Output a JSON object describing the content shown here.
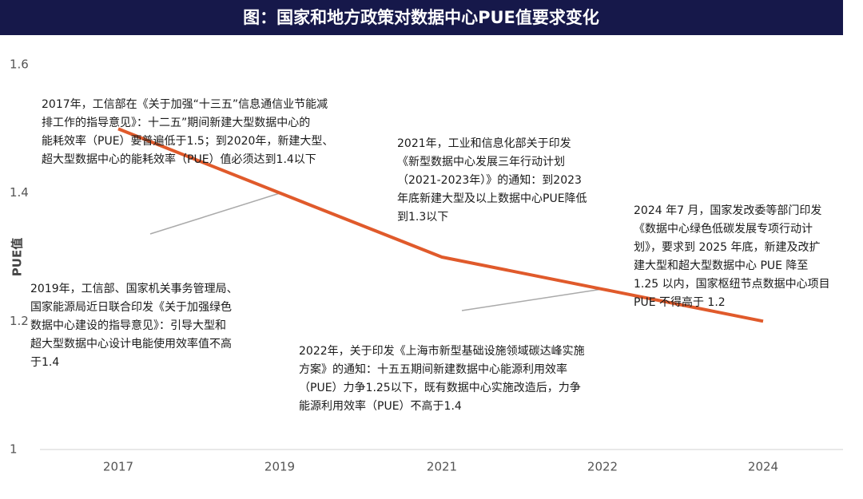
{
  "chart_data": {
    "type": "line",
    "title": "图：国家和地方政策对数据中心PUE值要求变化",
    "y_label": "PUE值",
    "categories": [
      "2017",
      "2019",
      "2021",
      "2022",
      "2024"
    ],
    "series": [
      {
        "name": "PUE",
        "color": "#e05a2b",
        "values": [
          1.5,
          1.4,
          1.3,
          1.25,
          1.2
        ]
      }
    ],
    "ylim": [
      1,
      1.6
    ],
    "yticks": [
      1,
      1.2,
      1.4,
      1.6
    ],
    "annotations": [
      [
        "2017年，工信部在《关于加强“十三五”信息通信业节能减",
        "排工作的指导意见》：十二五”期间新建大型数据中心的",
        "能耗效率（PUE）要普遍低于1.5；到2020年，新建大型、",
        "超大型数据中心的能耗效率（PUE）值必须达到1.4以下"
      ],
      [
        "2019年，工信部、国家机关事务管理局、",
        "国家能源局近日联合印发《关于加强绿色",
        "数据中心建设的指导意见》：引导大型和",
        "超大型数据中心设计电能使用效率值不高",
        "于1.4"
      ],
      [
        "2021年，工业和信息化部关于印发",
        "《新型数据中心发展三年行动计划",
        "（2021-2023年）》的通知：到2023",
        "年底新建大型及以上数据中心PUE降低",
        "到1.3以下"
      ],
      [
        "2022年，关于印发《上海市新型基础设施领域碳达峰实施",
        "方案》的通知：十五五期间新建数据中心能源利用效率",
        "（PUE）力争1.25以下，既有数据中心实施改造后，力争",
        "能源利用效率（PUE）不高于1.4"
      ],
      [
        "2024 年7 月，国家发改委等部门印发",
        "《数据中心绿色低碳发展专项行动计",
        "划》，要求到 2025 年底，新建及改扩",
        "建大型和超大型数据中心 PUE 降至",
        "1.25 以内，国家枢纽节点数据中心项目",
        "PUE 不得高于 1.2"
      ]
    ]
  }
}
